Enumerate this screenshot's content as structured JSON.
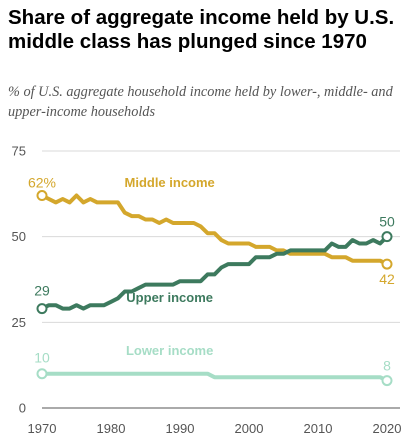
{
  "header": {
    "title": "Share of aggregate income held by U.S. middle class has plunged since 1970",
    "subtitle": "% of U.S. aggregate household income held by lower-, middle- and upper-income households"
  },
  "colors": {
    "middle": "#D4A72C",
    "upper": "#3D7A5E",
    "lower": "#A6DDC6",
    "axis": "#555555",
    "grid": "#D9D9D9"
  },
  "chart_data": {
    "type": "line",
    "title": "Share of aggregate income held by U.S. middle class has plunged since 1970",
    "subtitle": "% of U.S. aggregate household income held by lower-, middle- and upper-income households",
    "xlim": [
      1970,
      2020
    ],
    "ylim": [
      0,
      75
    ],
    "x_ticks": [
      "1970",
      "1980",
      "1990",
      "2000",
      "2010",
      "2020"
    ],
    "y_ticks": [
      "0",
      "25",
      "50",
      "75"
    ],
    "x": [
      1970,
      1971,
      1972,
      1973,
      1974,
      1975,
      1976,
      1977,
      1978,
      1979,
      1980,
      1981,
      1982,
      1983,
      1984,
      1985,
      1986,
      1987,
      1988,
      1989,
      1990,
      1991,
      1992,
      1993,
      1994,
      1995,
      1996,
      1997,
      1998,
      1999,
      2000,
      2001,
      2002,
      2003,
      2004,
      2005,
      2006,
      2007,
      2008,
      2009,
      2010,
      2011,
      2012,
      2013,
      2014,
      2015,
      2016,
      2017,
      2018,
      2019,
      2020
    ],
    "series": [
      {
        "name": "Middle income",
        "key": "middle",
        "values": [
          62,
          61,
          60,
          61,
          60,
          62,
          60,
          61,
          60,
          60,
          60,
          60,
          57,
          56,
          56,
          55,
          55,
          54,
          55,
          54,
          54,
          54,
          54,
          53,
          51,
          51,
          49,
          48,
          48,
          48,
          48,
          47,
          47,
          47,
          46,
          46,
          45,
          45,
          45,
          45,
          45,
          45,
          44,
          44,
          44,
          43,
          43,
          43,
          43,
          43,
          42
        ],
        "start_label": "62%",
        "end_label": "42"
      },
      {
        "name": "Upper income",
        "key": "upper",
        "values": [
          29,
          30,
          30,
          29,
          29,
          30,
          29,
          30,
          30,
          30,
          31,
          32,
          34,
          34,
          35,
          36,
          36,
          36,
          36,
          36,
          37,
          37,
          37,
          37,
          39,
          39,
          41,
          42,
          42,
          42,
          42,
          44,
          44,
          44,
          45,
          45,
          46,
          46,
          46,
          46,
          46,
          46,
          48,
          47,
          47,
          49,
          48,
          48,
          49,
          48,
          50
        ],
        "start_label": "29",
        "end_label": "50"
      },
      {
        "name": "Lower income",
        "key": "lower",
        "values": [
          10,
          10,
          10,
          10,
          10,
          10,
          10,
          10,
          10,
          10,
          10,
          10,
          10,
          10,
          10,
          10,
          10,
          10,
          10,
          10,
          10,
          10,
          10,
          10,
          10,
          9,
          9,
          9,
          9,
          9,
          9,
          9,
          9,
          9,
          9,
          9,
          9,
          9,
          9,
          9,
          9,
          9,
          9,
          9,
          9,
          9,
          9,
          9,
          9,
          9,
          8
        ],
        "start_label": "10",
        "end_label": "8"
      }
    ],
    "grid": true
  }
}
